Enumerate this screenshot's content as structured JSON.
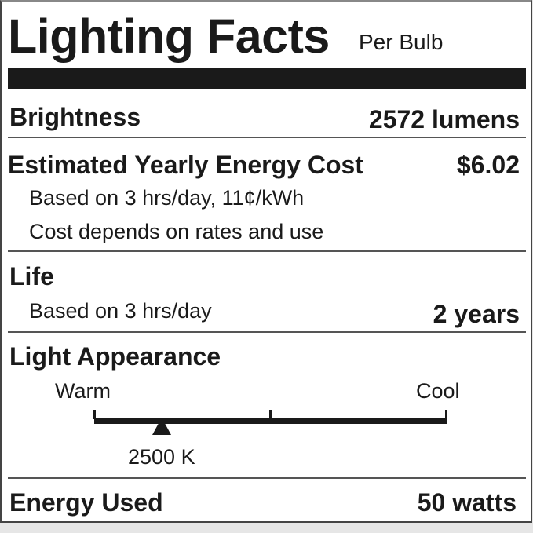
{
  "header": {
    "title": "Lighting Facts",
    "subtitle": "Per Bulb"
  },
  "brightness": {
    "label": "Brightness",
    "value": "2572 lumens"
  },
  "cost": {
    "label": "Estimated Yearly Energy Cost",
    "value": "$6.02",
    "note1": "Based on 3 hrs/day, 11¢/kWh",
    "note2": "Cost depends on rates and use"
  },
  "life": {
    "label": "Life",
    "note": "Based on 3 hrs/day",
    "value": "2 years"
  },
  "appearance": {
    "label": "Light Appearance",
    "warm": "Warm",
    "cool": "Cool",
    "value": "2500 K",
    "marker_position": 0.2
  },
  "energy": {
    "label": "Energy Used",
    "value": "50 watts"
  }
}
